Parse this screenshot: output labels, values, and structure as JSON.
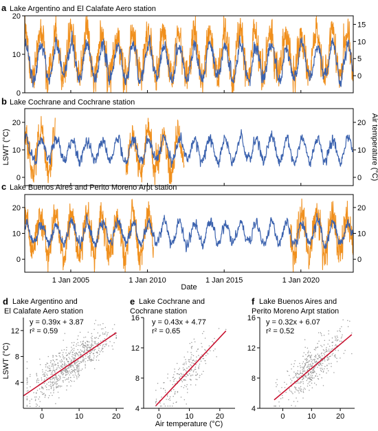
{
  "colors": {
    "lswt": "#3b62ae",
    "air": "#f0901e",
    "scatter": "#9a9a9a",
    "fit": "#c8102e",
    "axis": "#000000"
  },
  "chart_data": [
    {
      "type": "line",
      "panel": "a",
      "title": "Lake Argentino and El Calafate Aero station",
      "xlim": [
        "2002-01-01",
        "2023-06-01"
      ],
      "ylim_left": [
        0,
        20
      ],
      "ylim_right": [
        -5,
        17.5
      ],
      "yticks_left": [
        "0",
        "10",
        "20"
      ],
      "yticks_right": [
        "0",
        "5",
        "10",
        "15"
      ],
      "series": [
        {
          "axis": "left",
          "mean": 8,
          "amplitude": 4.5,
          "noise": 0.8,
          "gaps": []
        },
        {
          "axis": "right",
          "mean": 6,
          "amplitude": 6.5,
          "noise": 2.5,
          "gaps": []
        }
      ]
    },
    {
      "type": "line",
      "panel": "b",
      "title": "Lake Cochrane and Cochrane station",
      "ylabel_left": "LSWT (°C)",
      "ylabel_right": "Air temperature (°C)",
      "xlim": [
        "2002-01-01",
        "2023-06-01"
      ],
      "ylim_left": [
        -3,
        25
      ],
      "ylim_right": [
        -3,
        25
      ],
      "yticks_left": [
        "0",
        "10",
        "20"
      ],
      "yticks_right": [
        "0",
        "10",
        "20"
      ],
      "series": [
        {
          "axis": "left",
          "mean": 10,
          "amplitude": 4,
          "noise": 0.9,
          "gaps": []
        },
        {
          "axis": "right",
          "mean": 9,
          "amplitude": 7,
          "noise": 2.5,
          "gaps": [
            [
              2004,
              2008.6
            ],
            [
              2012.4,
              2100
            ]
          ]
        }
      ]
    },
    {
      "type": "line",
      "panel": "c",
      "title": "Lake Buenos Aires and Perito Moreno Arpt station",
      "xlabel": "Date",
      "xlim": [
        "2002-01-01",
        "2023-06-01"
      ],
      "ylim_left": [
        -5,
        25
      ],
      "ylim_right": [
        -5,
        25
      ],
      "yticks_left": [
        "0",
        "10",
        "20"
      ],
      "yticks_right": [
        "0",
        "10",
        "20"
      ],
      "xticks": [
        {
          "label": "1 Jan 2005",
          "date": "2005-01-01"
        },
        {
          "label": "1 Jan 2010",
          "date": "2010-01-01"
        },
        {
          "label": "1 Jan 2015",
          "date": "2015-01-01"
        },
        {
          "label": "1 Jan 2020",
          "date": "2020-01-01"
        }
      ],
      "series": [
        {
          "axis": "left",
          "mean": 10,
          "amplitude": 4,
          "noise": 0.9,
          "gaps": []
        },
        {
          "axis": "right",
          "mean": 9.5,
          "amplitude": 7.5,
          "noise": 3,
          "gaps": [
            [
              2010.4,
              2019.3
            ]
          ]
        }
      ]
    },
    {
      "type": "scatter",
      "panel": "d",
      "title": [
        "Lake Argentino and",
        "El Calafate Aero station"
      ],
      "ylabel": "LSWT (°C)",
      "xlim": [
        -5,
        22
      ],
      "ylim": [
        0,
        14
      ],
      "xticks": [
        0,
        10,
        20
      ],
      "yticks": [
        4,
        8,
        12
      ],
      "fit": {
        "slope": 0.39,
        "intercept": 3.87,
        "x_range": [
          -5,
          20
        ]
      },
      "equation": "y = 0.39x + 3.87",
      "r2": "r² = 0.59",
      "cloud": {
        "x_mean": 7.5,
        "x_sd": 5.5,
        "x_min": -4,
        "x_max": 20,
        "resid_sd": 1.6,
        "n": 700
      }
    },
    {
      "type": "scatter",
      "panel": "e",
      "title": [
        "Lake Cochrane and",
        "Cochrane station"
      ],
      "xlabel": "Air temperature (°C)",
      "xlim": [
        -5,
        25
      ],
      "ylim": [
        4,
        16
      ],
      "xticks": [
        0,
        10,
        20
      ],
      "yticks": [
        4,
        8,
        12,
        16
      ],
      "fit": {
        "slope": 0.43,
        "intercept": 4.77,
        "x_range": [
          -1,
          22
        ]
      },
      "equation": "y = 0.43x + 4.77",
      "r2": "r² = 0.65",
      "cloud": {
        "x_mean": 9,
        "x_sd": 5,
        "x_min": -1,
        "x_max": 22,
        "resid_sd": 1.4,
        "n": 220
      }
    },
    {
      "type": "scatter",
      "panel": "f",
      "title": [
        "Lake Buenos Aires and",
        "Perito Moreno Arpt station"
      ],
      "xlim": [
        -8,
        25
      ],
      "ylim": [
        4,
        16
      ],
      "xticks": [
        0,
        10,
        20
      ],
      "yticks": [
        4,
        8,
        12,
        16
      ],
      "fit": {
        "slope": 0.32,
        "intercept": 6.07,
        "x_range": [
          -3,
          24
        ]
      },
      "equation": "y = 0.32x + 6.07",
      "r2": "r² = 0.52",
      "cloud": {
        "x_mean": 10,
        "x_sd": 5.5,
        "x_min": -3,
        "x_max": 24,
        "resid_sd": 1.4,
        "n": 450
      }
    }
  ]
}
